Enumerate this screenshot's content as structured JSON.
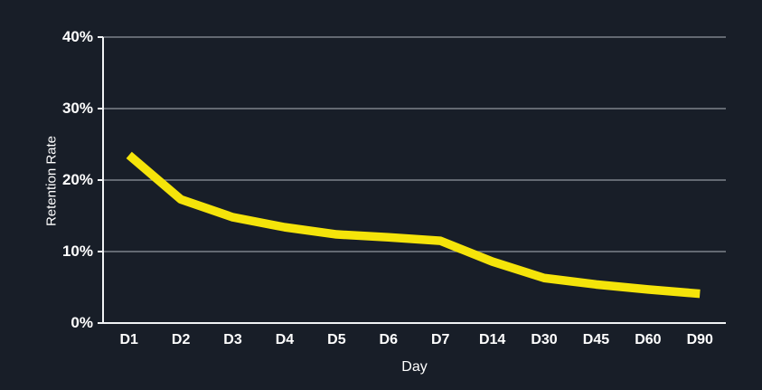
{
  "chart_data": {
    "type": "line",
    "title": "",
    "categories": [
      "D1",
      "D2",
      "D3",
      "D4",
      "D5",
      "D6",
      "D7",
      "D14",
      "D30",
      "D45",
      "D60",
      "D90"
    ],
    "series": [
      {
        "name": "Retention Rate",
        "color": "#F5E40A",
        "values": [
          23.5,
          17.3,
          14.8,
          13.4,
          12.4,
          12.0,
          11.5,
          8.6,
          6.3,
          5.4,
          4.7,
          4.1
        ]
      }
    ],
    "xlabel": "Day",
    "ylabel": "Retention Rate",
    "ylim": [
      0,
      40
    ],
    "y_tick_values": [
      0,
      10,
      20,
      30,
      40
    ],
    "y_tick_labels": [
      "0%",
      "10%",
      "20%",
      "30%",
      "40%"
    ],
    "grid": "horizontal",
    "legend": "none",
    "colors": {
      "background": "#181E28",
      "gridline": "#7C828A",
      "axis": "#F0F2F4",
      "text": "#FFFFFF",
      "line": "#F5E40A"
    }
  }
}
